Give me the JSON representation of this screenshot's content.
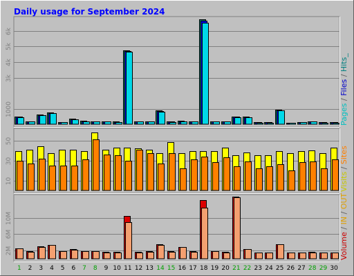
{
  "chart_data": {
    "type": "bar",
    "title": "Daily usage for September 2024",
    "title_color": "#0000ff",
    "days": [
      "1",
      "2",
      "3",
      "4",
      "5",
      "6",
      "7",
      "8",
      "9",
      "10",
      "11",
      "12",
      "13",
      "14",
      "15",
      "16",
      "17",
      "18",
      "19",
      "20",
      "21",
      "22",
      "23",
      "24",
      "25",
      "26",
      "27",
      "28",
      "29",
      "30"
    ],
    "weekend_days": [
      "1",
      "7",
      "8",
      "14",
      "15",
      "21",
      "22",
      "28",
      "29"
    ],
    "day_color_weekday": "#000000",
    "day_color_weekend": "#00a000",
    "panels": [
      {
        "name": "hits",
        "ylim": [
          0,
          6800
        ],
        "ticks": [
          {
            "v": 1000,
            "label": "1000"
          },
          {
            "v": 3000,
            "label": "3k"
          },
          {
            "v": 4000,
            "label": "4k"
          },
          {
            "v": 5000,
            "label": "5k"
          },
          {
            "v": 6000,
            "label": "6k"
          }
        ],
        "legend": [
          {
            "text": "Pages",
            "color": "#00c0c0"
          },
          {
            "text": " / ",
            "color": "#606060"
          },
          {
            "text": "Files",
            "color": "#0000cc"
          },
          {
            "text": " / ",
            "color": "#606060"
          },
          {
            "text": "Hits_",
            "color": "#008080"
          }
        ],
        "series": [
          {
            "name": "Hits",
            "color": "#00806f",
            "values": [
              500,
              180,
              620,
              740,
              150,
              350,
              210,
              190,
              190,
              160,
              4750,
              190,
              200,
              870,
              170,
              210,
              180,
              6750,
              190,
              190,
              500,
              470,
              130,
              130,
              920,
              110,
              150,
              190,
              130,
              130
            ]
          },
          {
            "name": "Files",
            "color": "#0000ff",
            "values": [
              480,
              170,
              600,
              720,
              140,
              330,
              200,
              180,
              180,
              150,
              4700,
              180,
              190,
              850,
              160,
              200,
              170,
              6650,
              180,
              180,
              480,
              460,
              120,
              120,
              900,
              100,
              140,
              180,
              120,
              120
            ]
          },
          {
            "name": "Pages",
            "color": "#00d8e8",
            "values": [
              450,
              160,
              580,
              700,
              130,
              310,
              190,
              170,
              170,
              140,
              4650,
              170,
              180,
              820,
              150,
              190,
              160,
              6550,
              170,
              170,
              460,
              440,
              110,
              110,
              880,
              90,
              130,
              170,
              110,
              110
            ]
          }
        ]
      },
      {
        "name": "visits",
        "ylim": [
          0,
          60
        ],
        "ticks": [
          {
            "v": 10,
            "label": "10"
          },
          {
            "v": 30,
            "label": "30"
          },
          {
            "v": 50,
            "label": "50"
          }
        ],
        "legend": [
          {
            "text": "Visits",
            "color": "#c8c800"
          },
          {
            "text": " / ",
            "color": "#606060"
          },
          {
            "text": "Sites",
            "color": "#ff8000"
          }
        ],
        "series": [
          {
            "name": "Visits",
            "color": "#ffff00",
            "values": [
              39,
              41,
              44,
              37,
              41,
              41,
              39,
              58,
              41,
              43,
              43,
              42,
              41,
              37,
              48,
              37,
              39,
              39,
              39,
              43,
              35,
              38,
              35,
              35,
              39,
              37,
              39,
              40,
              37,
              43
            ]
          },
          {
            "name": "Sites",
            "color": "#ff8000",
            "values": [
              30,
              27,
              32,
              25,
              25,
              25,
              31,
              51,
              36,
              35,
              30,
              41,
              37,
              27,
              37,
              22,
              31,
              34,
              28,
              33,
              24,
              29,
              22,
              24,
              26,
              20,
              28,
              29,
              22,
              31
            ]
          }
        ]
      },
      {
        "name": "volume",
        "ylim": [
          0,
          15200000
        ],
        "ticks": [
          {
            "v": 2000000,
            "label": "2M"
          },
          {
            "v": 6000000,
            "label": "6M"
          },
          {
            "v": 10000000,
            "label": "10M"
          }
        ],
        "legend": [
          {
            "text": "Volume",
            "color": "#cc0000"
          },
          {
            "text": " / ",
            "color": "#606060"
          },
          {
            "text": "IN",
            "color": "#e0a000"
          },
          {
            "text": " / ",
            "color": "#606060"
          },
          {
            "text": "OUT",
            "color": "#e0a000"
          }
        ],
        "series": [
          {
            "name": "Volume",
            "color": "#dd0000",
            "values": [
              2600000,
              1800000,
              3000000,
              3400000,
              1900000,
              2300000,
              1900000,
              1900000,
              1700000,
              1700000,
              10400000,
              1700000,
              1800000,
              3600000,
              1800000,
              2900000,
              1800000,
              14400000,
              1900000,
              1700000,
              15200000,
              2400000,
              1600000,
              1600000,
              3600000,
              1600000,
              1600000,
              1700000,
              1600000,
              1600000
            ]
          },
          {
            "name": "OUT",
            "color": "#f4a070",
            "values": [
              2500000,
              1700000,
              2900000,
              3300000,
              1800000,
              2200000,
              1800000,
              1800000,
              1600000,
              1600000,
              9000000,
              1600000,
              1700000,
              3400000,
              1700000,
              2800000,
              1700000,
              12500000,
              1800000,
              1600000,
              15100000,
              2300000,
              1500000,
              1500000,
              3500000,
              1500000,
              1500000,
              1600000,
              1500000,
              1500000
            ]
          }
        ]
      }
    ]
  }
}
